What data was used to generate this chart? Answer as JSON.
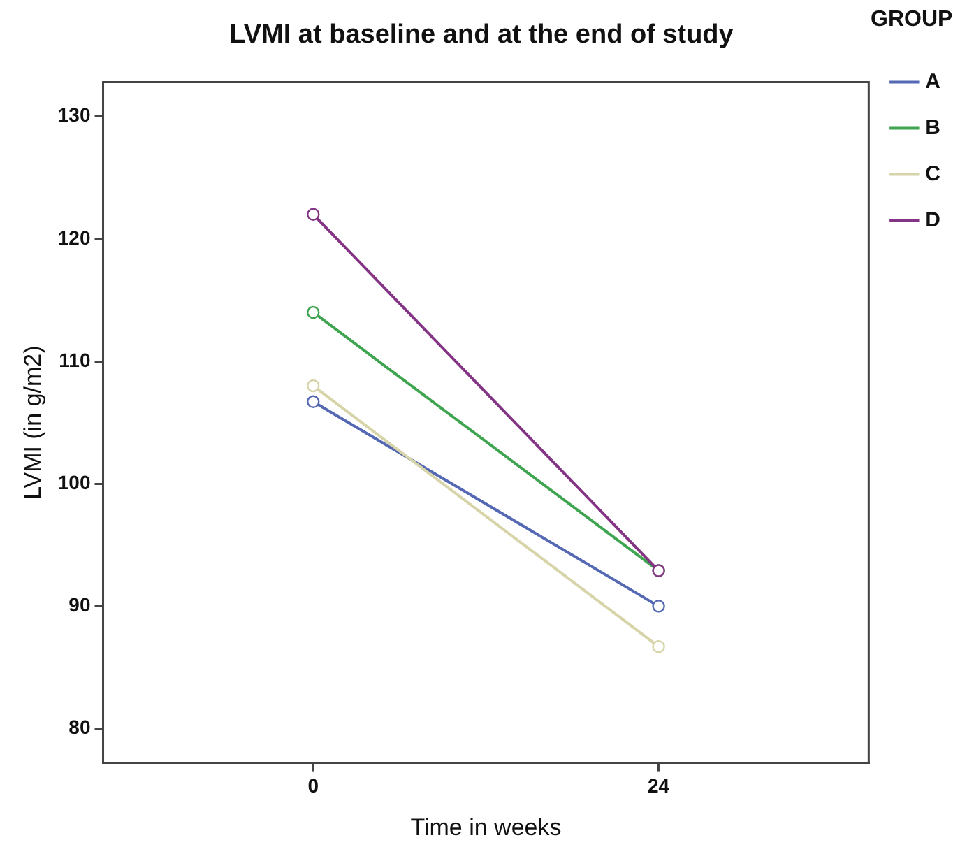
{
  "chart_data": {
    "type": "line",
    "title": "LVMI at baseline and at the end of study",
    "xlabel": "Time in weeks",
    "ylabel": "LVMI (in g/m2)",
    "legend_title": "GROUP",
    "x": [
      0,
      24
    ],
    "series": [
      {
        "name": "A",
        "color": "#5468b4",
        "values": [
          106.7,
          90
        ]
      },
      {
        "name": "B",
        "color": "#3fa450",
        "values": [
          114,
          92.9
        ]
      },
      {
        "name": "C",
        "color": "#d6d4a8",
        "values": [
          108,
          86.7
        ]
      },
      {
        "name": "D",
        "color": "#843484",
        "values": [
          122,
          92.9
        ]
      }
    ],
    "xlim": [
      -14.6,
      38.6
    ],
    "xticks": [
      0,
      24
    ],
    "ylim": [
      77.2,
      132.8
    ],
    "yticks": [
      80,
      90,
      100,
      110,
      120,
      130
    ],
    "grid": false,
    "legend": "right",
    "marker": "circle",
    "line_style": "solid"
  }
}
